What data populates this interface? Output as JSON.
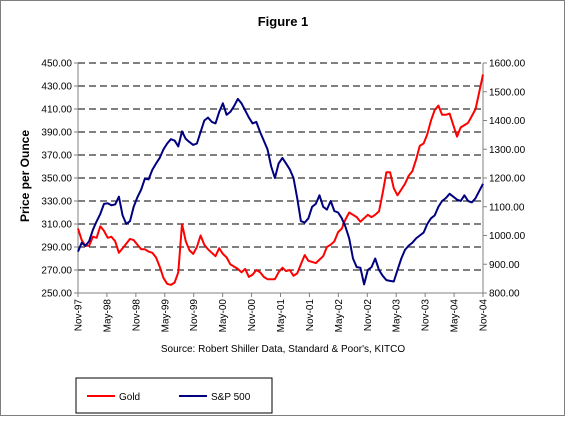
{
  "chart_data": {
    "type": "line",
    "title": "Figure 1",
    "ylabel": "Price per Ounce",
    "source": "Source: Robert Shiller Data, Standard & Poor's, KITCO",
    "grid": "horizontal-dashed",
    "legend_position": "bottom-left",
    "y_left": {
      "range": [
        250,
        450
      ],
      "ticks": [
        "250.00",
        "270.00",
        "290.00",
        "310.00",
        "330.00",
        "350.00",
        "370.00",
        "390.00",
        "410.00",
        "430.00",
        "450.00"
      ]
    },
    "y_right": {
      "range": [
        800,
        1600
      ],
      "ticks": [
        "800.00",
        "900.00",
        "1000.00",
        "1100.00",
        "1200.00",
        "1300.00",
        "1400.00",
        "1500.00",
        "1600.00"
      ]
    },
    "x_ticks": [
      "Nov-97",
      "May-98",
      "Nov-98",
      "May-99",
      "Nov-99",
      "May-00",
      "Nov-00",
      "May-01",
      "Nov-01",
      "May-02",
      "Nov-02",
      "May-03",
      "Nov-03",
      "May-04",
      "Nov-04"
    ],
    "series": [
      {
        "name": "Gold",
        "color": "#ff0000",
        "axis": "left",
        "values": [
          306,
          296,
          291,
          291,
          299,
          298,
          308,
          304,
          298,
          299,
          295,
          285,
          289,
          293,
          297,
          296,
          292,
          288,
          288,
          286,
          285,
          281,
          273,
          263,
          258,
          257,
          259,
          268,
          310,
          295,
          287,
          284,
          290,
          300,
          292,
          288,
          285,
          282,
          289,
          284,
          281,
          275,
          273,
          271,
          268,
          271,
          264,
          266,
          270,
          268,
          264,
          262,
          262,
          262,
          268,
          272,
          269,
          270,
          265,
          267,
          275,
          283,
          278,
          277,
          276,
          279,
          282,
          290,
          292,
          295,
          303,
          306,
          314,
          320,
          318,
          316,
          312,
          315,
          318,
          316,
          318,
          321,
          337,
          355,
          355,
          341,
          335,
          340,
          345,
          352,
          356,
          366,
          378,
          380,
          388,
          400,
          409,
          413,
          405,
          405,
          406,
          396,
          386,
          394,
          396,
          398,
          404,
          410,
          425,
          440
        ]
      },
      {
        "name": "S&P 500",
        "color": "#000080",
        "axis": "right",
        "values": [
          944,
          975,
          964,
          980,
          1020,
          1049,
          1075,
          1110,
          1112,
          1105,
          1108,
          1135,
          1070,
          1040,
          1050,
          1100,
          1133,
          1160,
          1198,
          1195,
          1228,
          1250,
          1270,
          1300,
          1320,
          1335,
          1330,
          1310,
          1362,
          1336,
          1325,
          1315,
          1320,
          1360,
          1400,
          1410,
          1395,
          1390,
          1430,
          1460,
          1420,
          1430,
          1450,
          1475,
          1460,
          1435,
          1410,
          1390,
          1395,
          1360,
          1330,
          1300,
          1240,
          1200,
          1250,
          1270,
          1250,
          1230,
          1200,
          1130,
          1050,
          1045,
          1060,
          1100,
          1110,
          1140,
          1100,
          1090,
          1120,
          1085,
          1080,
          1060,
          1030,
          990,
          920,
          890,
          888,
          830,
          880,
          890,
          920,
          880,
          860,
          845,
          842,
          840,
          880,
          920,
          950,
          965,
          975,
          990,
          1000,
          1010,
          1040,
          1060,
          1070,
          1100,
          1120,
          1130,
          1145,
          1135,
          1125,
          1120,
          1140,
          1120,
          1115,
          1130,
          1155,
          1180
        ]
      }
    ]
  }
}
